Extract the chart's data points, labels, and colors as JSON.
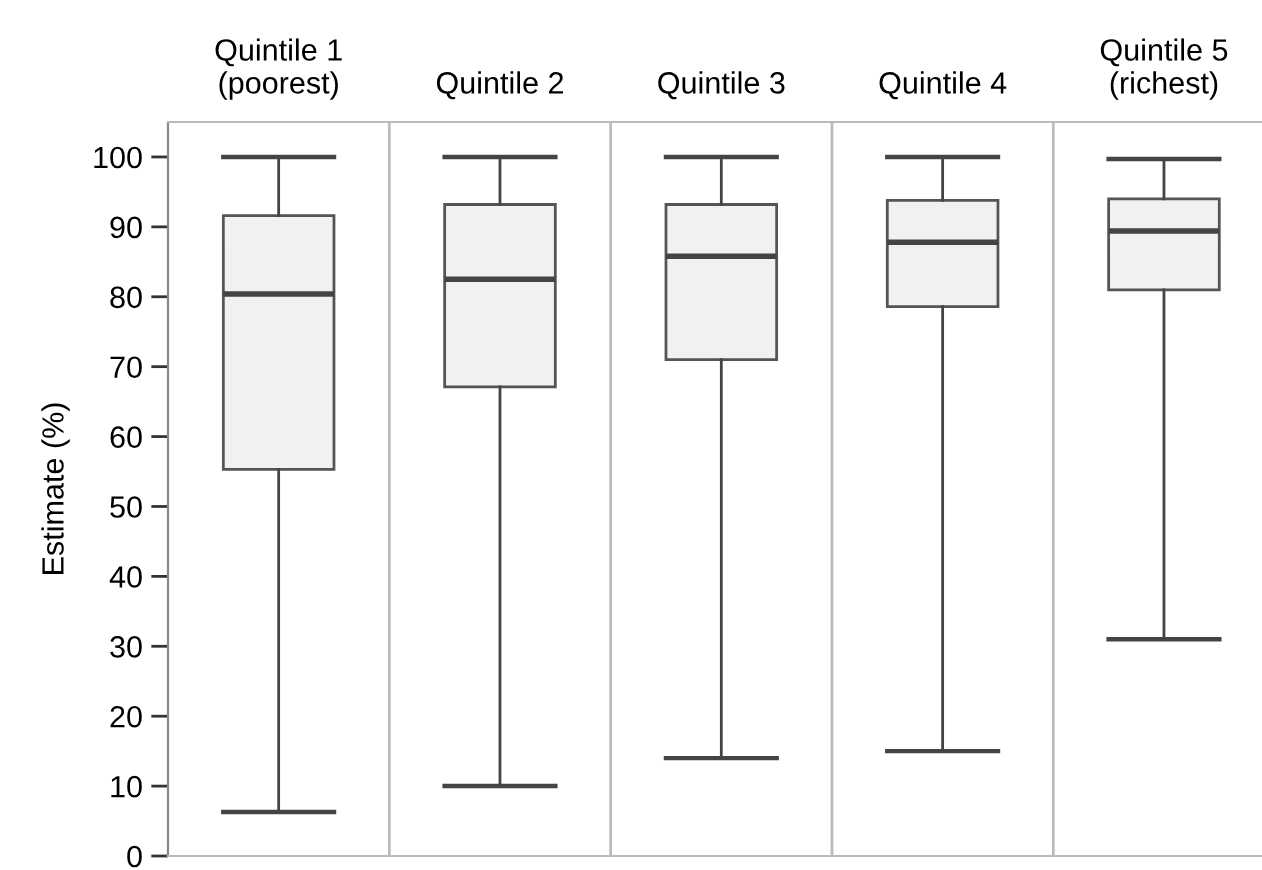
{
  "chart_data": {
    "type": "box",
    "ylabel": "Estimate (%)",
    "categories": [
      "Quintile 1\n(poorest)",
      "Quintile 2",
      "Quintile 3",
      "Quintile 4",
      "Quintile 5\n(richest)"
    ],
    "boxes": [
      {
        "low": 6.3,
        "q1": 55.3,
        "median": 80.4,
        "q3": 91.6,
        "high": 100
      },
      {
        "low": 10,
        "q1": 67.1,
        "median": 82.5,
        "q3": 93.2,
        "high": 100
      },
      {
        "low": 14,
        "q1": 71,
        "median": 85.8,
        "q3": 93.2,
        "high": 100
      },
      {
        "low": 15,
        "q1": 78.6,
        "median": 87.8,
        "q3": 93.8,
        "high": 100
      },
      {
        "low": 31,
        "q1": 81,
        "median": 89.4,
        "q3": 94,
        "high": 99.7
      }
    ],
    "color": "#f0f1f0",
    "ylim": [
      0,
      105
    ],
    "yticks": [
      0,
      10,
      20,
      30,
      40,
      50,
      60,
      70,
      80,
      90,
      100
    ],
    "grid": "x"
  }
}
